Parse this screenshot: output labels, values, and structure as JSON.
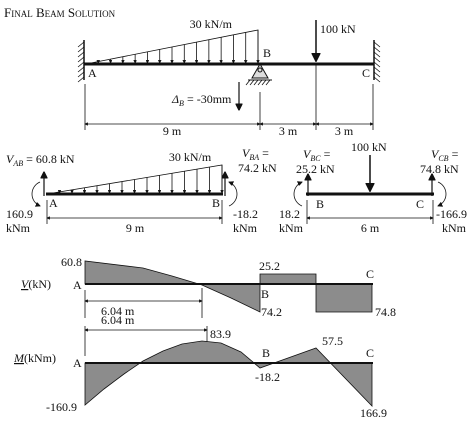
{
  "title": "Final Beam Solution",
  "beam": {
    "distributed_load": "30 kN/m",
    "point_load": "100 kN",
    "support_a": "A",
    "support_b": "B",
    "support_c": "C",
    "settlement": {
      "symbol": "Δ",
      "subscript": "B",
      "text": " = -30mm"
    },
    "spans": [
      "9 m",
      "3 m",
      "3 m"
    ]
  },
  "free_body_ab": {
    "distributed_load": "30 kN/m",
    "shear_left": {
      "symbol": "V",
      "subscript": "AB",
      "text": " = 60.8 kN"
    },
    "shear_right": {
      "symbol": "V",
      "subscript": "BA",
      "text": " =",
      "value": "74.2 kN"
    },
    "moment_left": {
      "value": "160.9",
      "unit": "kNm"
    },
    "moment_right": {
      "value": "-18.2",
      "unit": "kNm"
    },
    "node_left": "A",
    "node_right": "B",
    "span": "9 m"
  },
  "free_body_bc": {
    "point_load": "100 kN",
    "shear_left": {
      "symbol": "V",
      "subscript": "BC",
      "text": " =",
      "value": "25.2 kN"
    },
    "shear_right": {
      "symbol": "V",
      "subscript": "CB",
      "text": " =",
      "value": "74.8 kN"
    },
    "moment_left": {
      "value": "18.2",
      "unit": "kNm"
    },
    "moment_right": {
      "value": "-166.9",
      "unit": "kNm"
    },
    "node_left": "B",
    "node_right": "C",
    "span": "6 m"
  },
  "shear_diagram": {
    "axis_symbol": "V",
    "axis_unit": "(kN)",
    "max": "60.8",
    "node_a": "A",
    "node_b": "B",
    "node_c": "C",
    "b_left": "74.2",
    "b_right": "25.2",
    "c_value": "74.8",
    "zero_location": "6.04 m"
  },
  "moment_diagram": {
    "axis_symbol": "M",
    "axis_unit": "(kNm)",
    "max_location": "6.04 m",
    "max": "83.9",
    "node_a": "A",
    "node_b": "B",
    "node_c": "C",
    "a_value": "-160.9",
    "b_value": "-18.2",
    "load_point": "57.5",
    "c_value": "166.9"
  }
}
